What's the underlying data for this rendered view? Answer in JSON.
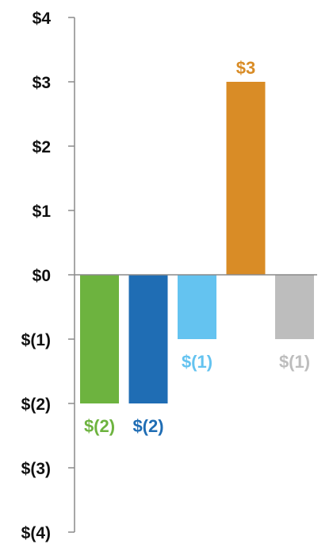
{
  "chart_data": {
    "type": "bar",
    "title": "",
    "xlabel": "",
    "ylabel": "",
    "ylim": [
      -4,
      4
    ],
    "y_ticks": [
      4,
      3,
      2,
      1,
      0,
      -1,
      -2,
      -3,
      -4
    ],
    "y_tick_labels": [
      "$4",
      "$3",
      "$2",
      "$1",
      "$0",
      "$(1)",
      "$(2)",
      "$(3)",
      "$(4)"
    ],
    "grid": false,
    "legend": "none",
    "bars": [
      {
        "value": -2,
        "label": "$(2)",
        "color": "#6db33f"
      },
      {
        "value": -2,
        "label": "$(2)",
        "color": "#1f6db4"
      },
      {
        "value": -1,
        "label": "$(1)",
        "color": "#64c3f0"
      },
      {
        "value": 3,
        "label": "$3",
        "color": "#d98c26"
      },
      {
        "value": -1,
        "label": "$(1)",
        "color": "#bdbdbd"
      }
    ]
  }
}
